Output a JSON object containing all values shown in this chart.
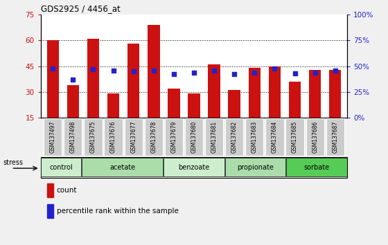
{
  "title": "GDS2925 / 4456_at",
  "samples": [
    "GSM137497",
    "GSM137498",
    "GSM137675",
    "GSM137676",
    "GSM137677",
    "GSM137678",
    "GSM137679",
    "GSM137680",
    "GSM137681",
    "GSM137682",
    "GSM137683",
    "GSM137684",
    "GSM137685",
    "GSM137686",
    "GSM137687"
  ],
  "count_values": [
    60,
    34,
    61,
    29,
    58,
    69,
    32,
    29,
    46,
    31,
    44,
    45,
    36,
    43,
    43
  ],
  "percentile_values": [
    48,
    37,
    47,
    46,
    45,
    46,
    42,
    44,
    46,
    42,
    44,
    48,
    43,
    44,
    46
  ],
  "bar_color": "#cc1111",
  "dot_color": "#2222cc",
  "ylim_left": [
    15,
    75
  ],
  "ylim_right": [
    0,
    100
  ],
  "yticks_left": [
    15,
    30,
    45,
    60,
    75
  ],
  "yticks_right": [
    0,
    25,
    50,
    75,
    100
  ],
  "ytick_labels_right": [
    "0%",
    "25%",
    "50%",
    "75%",
    "100%"
  ],
  "groups": [
    {
      "label": "control",
      "start": 0,
      "end": 1,
      "color": "#cceecc"
    },
    {
      "label": "acetate",
      "start": 2,
      "end": 5,
      "color": "#aaddaa"
    },
    {
      "label": "benzoate",
      "start": 6,
      "end": 8,
      "color": "#cceecc"
    },
    {
      "label": "propionate",
      "start": 9,
      "end": 11,
      "color": "#aaddaa"
    },
    {
      "label": "sorbate",
      "start": 12,
      "end": 14,
      "color": "#55cc55"
    }
  ],
  "stress_label": "stress",
  "legend_count": "count",
  "legend_percentile": "percentile rank within the sample",
  "fig_bg": "#f0f0f0",
  "plot_bg": "#ffffff",
  "sample_cell_color": "#cccccc"
}
